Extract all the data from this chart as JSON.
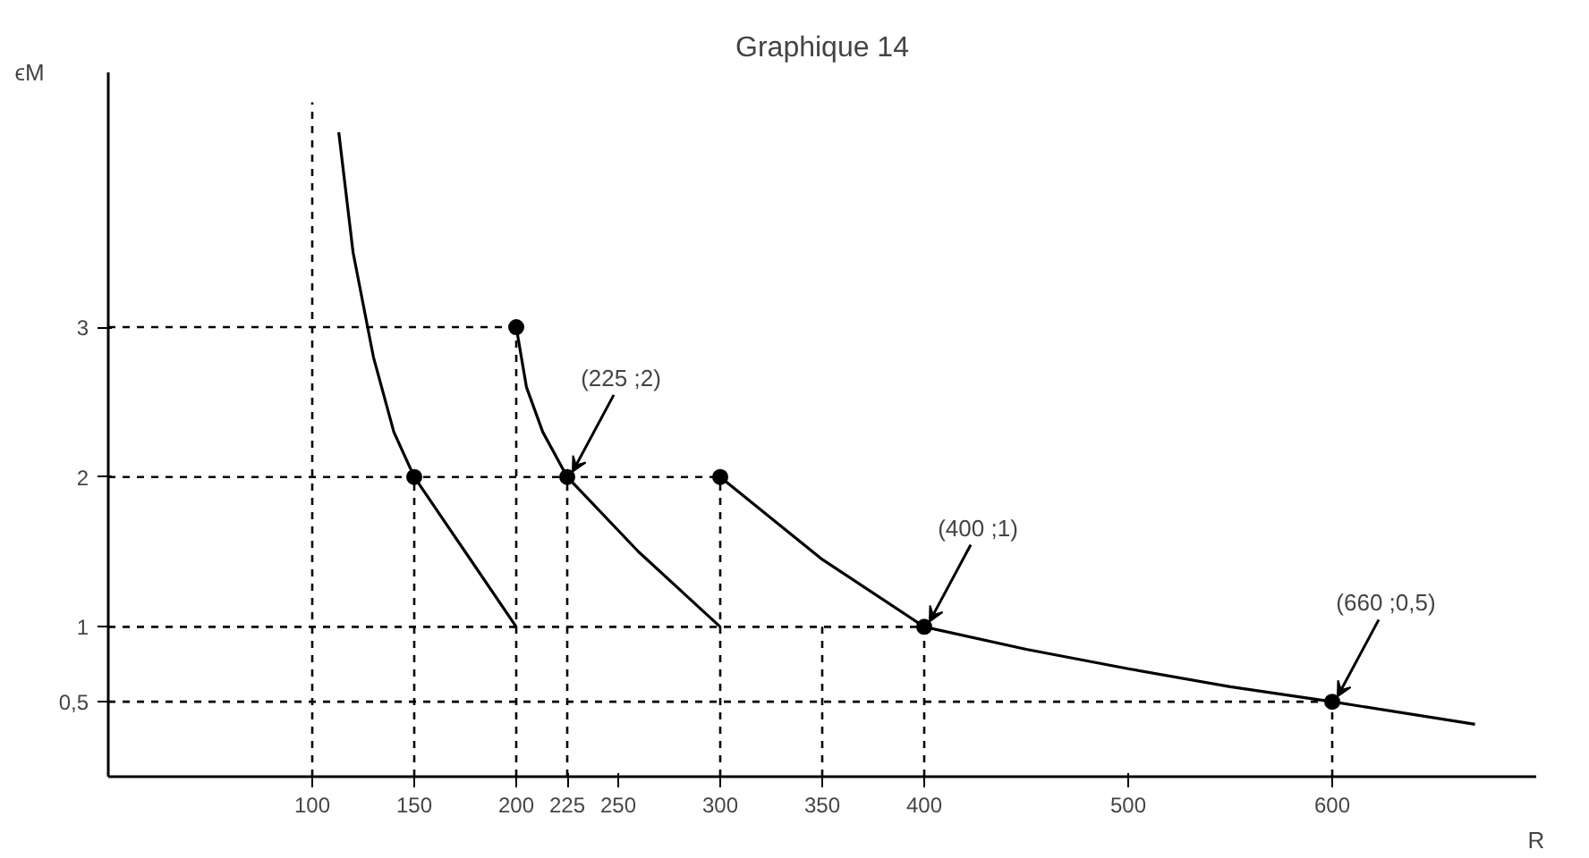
{
  "chart_data": {
    "type": "line",
    "title": "Graphique 14",
    "xlabel": "R",
    "ylabel": "ϵM",
    "xlim": [
      0,
      700
    ],
    "ylim": [
      0,
      4.7
    ],
    "xticks": [
      100,
      150,
      200,
      225,
      250,
      300,
      350,
      400,
      500,
      600
    ],
    "yticks": [
      {
        "value": 0.5,
        "label": "0,5"
      },
      1,
      2,
      3
    ],
    "grid": false,
    "series": [
      {
        "color": "#000000",
        "x": [
          113,
          120,
          130,
          140,
          150,
          175,
          200
        ],
        "values": [
          4.3,
          3.5,
          2.8,
          2.3,
          2,
          1.5,
          1
        ]
      },
      {
        "color": "#000000",
        "x": [
          200,
          205,
          213,
          225,
          260,
          300
        ],
        "values": [
          3,
          2.6,
          2.3,
          2,
          1.5,
          1
        ]
      },
      {
        "color": "#000000",
        "x": [
          300,
          350,
          400,
          450,
          500,
          550,
          600,
          670
        ],
        "values": [
          2,
          1.45,
          1,
          0.85,
          0.72,
          0.6,
          0.5,
          0.35
        ]
      },
      {
        "type": "scatter",
        "marker": "circle",
        "color": "#000000",
        "x": [
          150,
          200,
          225,
          300,
          400,
          600
        ],
        "values": [
          2,
          3,
          2,
          2,
          1,
          0.5
        ]
      },
      {
        "type": "line",
        "line_style": "dashed",
        "color": "#000000",
        "x": [
          100,
          100
        ],
        "values": [
          0,
          4.5
        ]
      },
      {
        "type": "line",
        "line_style": "dashed",
        "color": "#000000",
        "x": [
          150,
          150
        ],
        "values": [
          0,
          2
        ]
      },
      {
        "type": "line",
        "line_style": "dashed",
        "color": "#000000",
        "x": [
          200,
          200
        ],
        "values": [
          0,
          3
        ]
      },
      {
        "type": "line",
        "line_style": "dashed",
        "color": "#000000",
        "x": [
          225,
          225
        ],
        "values": [
          0,
          2
        ]
      },
      {
        "type": "line",
        "line_style": "dashed",
        "color": "#000000",
        "x": [
          300,
          300
        ],
        "values": [
          0,
          2
        ]
      },
      {
        "type": "line",
        "line_style": "dashed",
        "color": "#000000",
        "x": [
          350,
          350
        ],
        "values": [
          0,
          1
        ]
      },
      {
        "type": "line",
        "line_style": "dashed",
        "color": "#000000",
        "x": [
          400,
          400
        ],
        "values": [
          0,
          1
        ]
      },
      {
        "type": "line",
        "line_style": "dashed",
        "color": "#000000",
        "x": [
          600,
          600
        ],
        "values": [
          0,
          0.5
        ]
      },
      {
        "type": "line",
        "line_style": "dashed",
        "color": "#000000",
        "x": [
          0,
          200
        ],
        "values": [
          3,
          3
        ]
      },
      {
        "type": "line",
        "line_style": "dashed",
        "color": "#000000",
        "x": [
          0,
          300
        ],
        "values": [
          2,
          2
        ]
      },
      {
        "type": "line",
        "line_style": "dashed",
        "color": "#000000",
        "x": [
          0,
          400
        ],
        "values": [
          1,
          1
        ]
      },
      {
        "type": "line",
        "line_style": "dashed",
        "color": "#000000",
        "x": [
          0,
          600
        ],
        "values": [
          0.5,
          0.5
        ]
      }
    ],
    "annotations": [
      {
        "text": "(225 ;2)",
        "x": 225,
        "y": 2
      },
      {
        "text": "(400 ;1)",
        "x": 400,
        "y": 1
      },
      {
        "text": "(660 ;0,5)",
        "x": 600,
        "y": 0.5
      }
    ]
  }
}
